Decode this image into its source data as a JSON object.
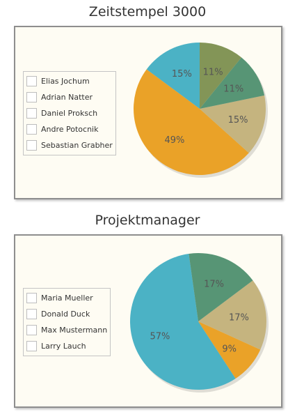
{
  "chart_data": [
    {
      "type": "pie",
      "title": "Zeitstempel 3000",
      "legend_position": "left",
      "slices": [
        {
          "name": "Elias Jochum",
          "value": 15,
          "label": "15%",
          "color": "#4bb2c5"
        },
        {
          "name": "Adrian Natter",
          "value": 49,
          "label": "49%",
          "color": "#eaa228"
        },
        {
          "name": "Daniel Proksch",
          "value": 15,
          "label": "15%",
          "color": "#c5b47f"
        },
        {
          "name": "Andre Potocnik",
          "value": 11,
          "label": "11%",
          "color": "#579575"
        },
        {
          "name": "Sebastian Grabher",
          "value": 11,
          "label": "11%",
          "color": "#839557"
        }
      ]
    },
    {
      "type": "pie",
      "title": "Projektmanager",
      "legend_position": "left",
      "slices": [
        {
          "name": "Maria Mueller",
          "value": 57,
          "label": "57%",
          "color": "#4bb2c5"
        },
        {
          "name": "Donald Duck",
          "value": 9,
          "label": "9%",
          "color": "#eaa228"
        },
        {
          "name": "Max Mustermann",
          "value": 17,
          "label": "17%",
          "color": "#c5b47f"
        },
        {
          "name": "Larry Lauch",
          "value": 17,
          "label": "17%",
          "color": "#579575"
        }
      ]
    }
  ]
}
